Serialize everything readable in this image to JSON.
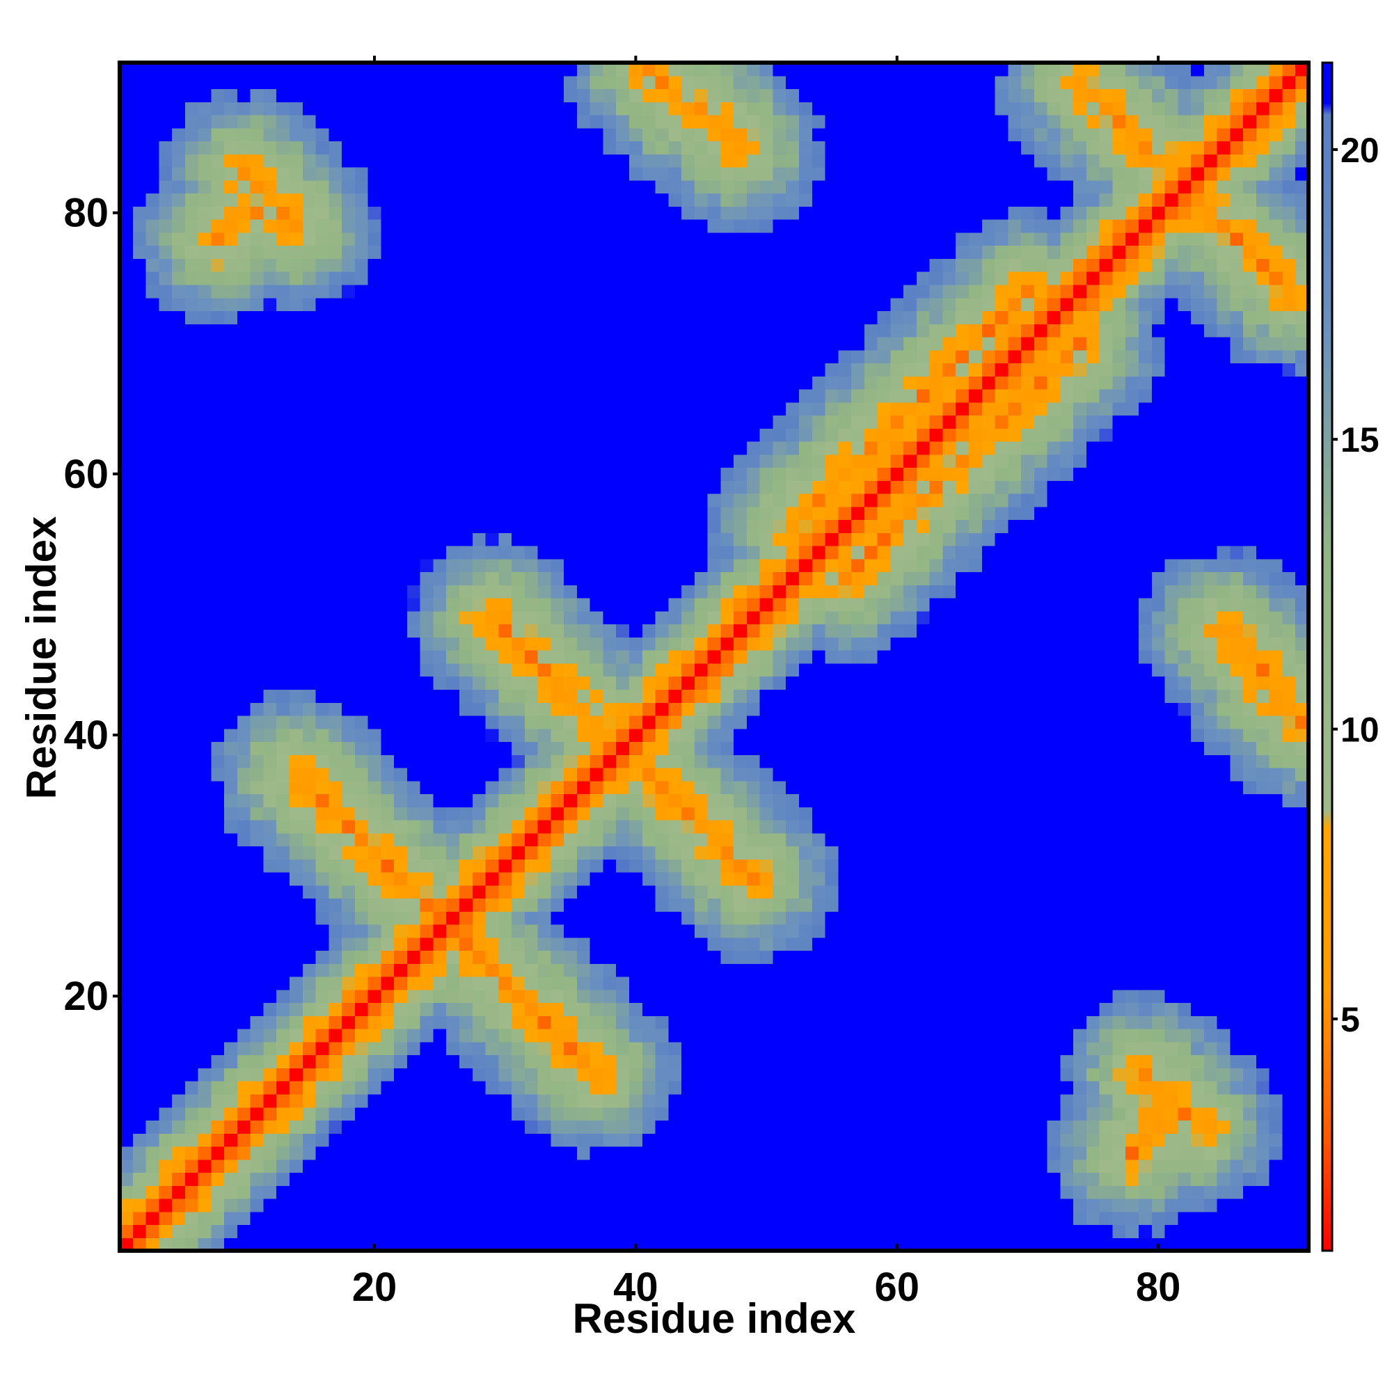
{
  "chart_data": {
    "type": "heatmap",
    "title": "",
    "xlabel": "Residue index",
    "ylabel": "Residue index",
    "n": 91,
    "xlim": [
      0.5,
      91.5
    ],
    "ylim": [
      0.5,
      91.5
    ],
    "x_ticks": [
      20,
      40,
      60,
      80
    ],
    "y_ticks": [
      20,
      40,
      60,
      80
    ],
    "x_tick_labels": [
      "20",
      "40",
      "60",
      "80"
    ],
    "y_tick_labels": [
      "20",
      "40",
      "60",
      "80"
    ],
    "colorbar": {
      "range": [
        1,
        21.5
      ],
      "ticks": [
        5,
        10,
        15,
        20
      ],
      "tick_labels": [
        "5",
        "10",
        "15",
        "20"
      ],
      "stops": [
        {
          "value": 1,
          "color": "#ff0000"
        },
        {
          "value": 3,
          "color": "#ff5a00"
        },
        {
          "value": 5.5,
          "color": "#ff9a00"
        },
        {
          "value": 8.3,
          "color": "#ffa500"
        },
        {
          "value": 8.6,
          "color": "#9fb98a"
        },
        {
          "value": 13,
          "color": "#93b584"
        },
        {
          "value": 17,
          "color": "#6a90c0"
        },
        {
          "value": 20.6,
          "color": "#5a7fc4"
        },
        {
          "value": 20.8,
          "color": "#0000ff"
        },
        {
          "value": 21.5,
          "color": "#0000ff"
        }
      ]
    },
    "value_description": "pairwise residue distance; >21 shown as saturated blue",
    "contact_features": [
      {
        "kind": "diagonal",
        "note": "main diagonal i=j distance ~1"
      },
      {
        "kind": "antiparallel",
        "i_range": [
          14,
          37
        ],
        "j_range": [
          37,
          14
        ]
      },
      {
        "kind": "antiparallel",
        "i_range": [
          29,
          49
        ],
        "j_range": [
          49,
          29
        ]
      },
      {
        "kind": "antiparallel",
        "i_range": [
          10,
          14
        ],
        "j_range": [
          83,
          79
        ]
      },
      {
        "kind": "antiparallel",
        "i_range": [
          41,
          48
        ],
        "j_range": [
          91,
          85
        ]
      },
      {
        "kind": "antiparallel",
        "i_range": [
          74,
          90
        ],
        "j_range": [
          90,
          74
        ]
      },
      {
        "kind": "parallel",
        "i_range": [
          52,
          70
        ],
        "j_range": [
          56,
          74
        ]
      },
      {
        "kind": "parallel",
        "i_range": [
          78,
          81
        ],
        "j_range": [
          8,
          12
        ]
      }
    ]
  }
}
